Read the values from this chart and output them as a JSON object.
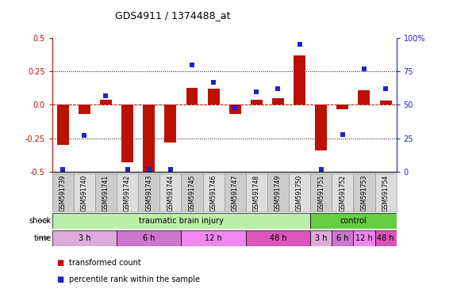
{
  "title": "GDS4911 / 1374488_at",
  "samples": [
    "GSM591739",
    "GSM591740",
    "GSM591741",
    "GSM591742",
    "GSM591743",
    "GSM591744",
    "GSM591745",
    "GSM591746",
    "GSM591747",
    "GSM591748",
    "GSM591749",
    "GSM591750",
    "GSM591751",
    "GSM591752",
    "GSM591753",
    "GSM591754"
  ],
  "bar_values": [
    -0.3,
    -0.07,
    0.04,
    -0.43,
    -0.5,
    -0.28,
    0.13,
    0.12,
    -0.07,
    0.04,
    0.05,
    0.37,
    -0.34,
    -0.03,
    0.11,
    0.03
  ],
  "dot_percentiles": [
    2,
    27,
    57,
    2,
    2,
    2,
    80,
    67,
    48,
    60,
    62,
    95,
    2,
    28,
    77,
    62
  ],
  "ylim_left": [
    -0.5,
    0.5
  ],
  "ylim_right": [
    0,
    100
  ],
  "yticks_left": [
    -0.5,
    -0.25,
    0.0,
    0.25,
    0.5
  ],
  "yticks_right": [
    0,
    25,
    50,
    75,
    100
  ],
  "bar_color": "#bb1100",
  "dot_color": "#2222cc",
  "shock_groups": [
    {
      "label": "traumatic brain injury",
      "start": 0,
      "end": 11,
      "color": "#bbeeaa"
    },
    {
      "label": "control",
      "start": 12,
      "end": 15,
      "color": "#66cc44"
    }
  ],
  "time_groups": [
    {
      "label": "3 h",
      "start": 0,
      "end": 2,
      "color": "#ddaadd"
    },
    {
      "label": "6 h",
      "start": 3,
      "end": 5,
      "color": "#cc77cc"
    },
    {
      "label": "12 h",
      "start": 6,
      "end": 8,
      "color": "#ee88ee"
    },
    {
      "label": "48 h",
      "start": 9,
      "end": 11,
      "color": "#dd55bb"
    },
    {
      "label": "3 h",
      "start": 12,
      "end": 12,
      "color": "#ddaadd"
    },
    {
      "label": "6 h",
      "start": 13,
      "end": 13,
      "color": "#cc77cc"
    },
    {
      "label": "12 h",
      "start": 14,
      "end": 14,
      "color": "#ee88ee"
    },
    {
      "label": "48 h",
      "start": 15,
      "end": 15,
      "color": "#dd55bb"
    }
  ],
  "legend": [
    {
      "label": "transformed count",
      "color": "#bb1100"
    },
    {
      "label": "percentile rank within the sample",
      "color": "#2222cc"
    }
  ],
  "hlines_dotted": [
    -0.25,
    0.0,
    0.25
  ],
  "sample_box_color": "#cccccc",
  "sample_box_color_alt": "#dddddd"
}
